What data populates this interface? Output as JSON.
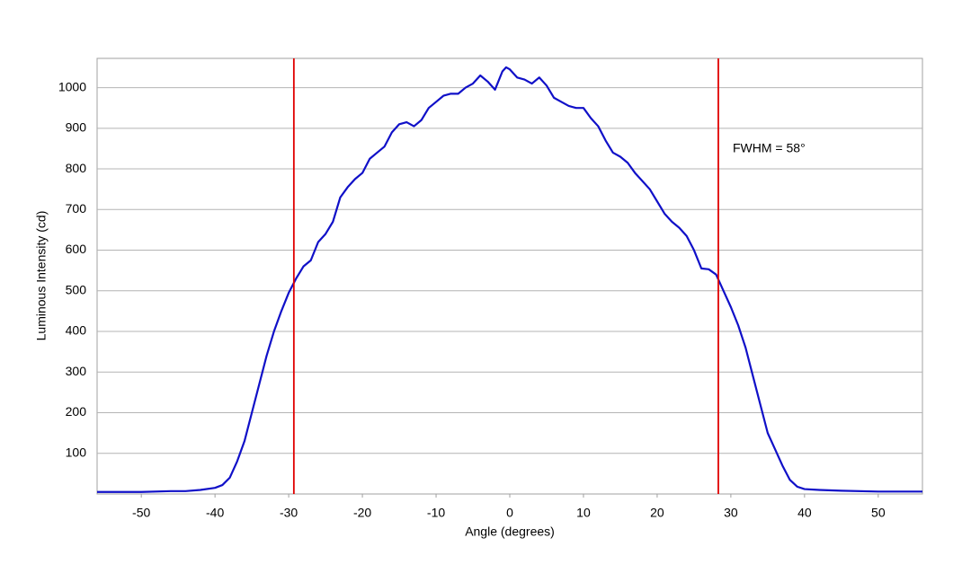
{
  "chart_data": {
    "type": "line",
    "x_label": "Angle (degrees)",
    "y_label": "Luminous Intensity (cd)",
    "annotation": "FWHM = 58°",
    "xlim": [
      -56,
      56
    ],
    "ylim": [
      0,
      1072
    ],
    "xticks": [
      -50,
      -40,
      -30,
      -20,
      -10,
      0,
      10,
      20,
      30,
      40,
      50
    ],
    "yticks": [
      100,
      200,
      300,
      400,
      500,
      600,
      700,
      800,
      900,
      1000
    ],
    "grid": true,
    "vlines": [
      -29.3,
      28.3
    ],
    "vline_color": "#e00000",
    "x": [
      -56,
      -50,
      -46,
      -44,
      -42,
      -40,
      -39,
      -38,
      -37,
      -36,
      -35,
      -34,
      -33,
      -32,
      -31,
      -30,
      -29,
      -28,
      -27,
      -26,
      -25,
      -24,
      -23,
      -22,
      -21,
      -20,
      -19,
      -18,
      -17,
      -16,
      -15,
      -14,
      -13,
      -12,
      -11,
      -10,
      -9,
      -8,
      -7,
      -6,
      -5,
      -4,
      -3,
      -2,
      -1,
      -0.5,
      0,
      1,
      2,
      3,
      4,
      5,
      6,
      7,
      8,
      9,
      10,
      11,
      12,
      13,
      14,
      15,
      16,
      17,
      18,
      19,
      20,
      21,
      22,
      23,
      24,
      25,
      26,
      27,
      28,
      29,
      30,
      31,
      32,
      33,
      34,
      35,
      36,
      37,
      38,
      39,
      40,
      42,
      45,
      50,
      56
    ],
    "series": [
      {
        "color": "#1010c8",
        "values": [
          5,
          5,
          7,
          7,
          10,
          15,
          22,
          40,
          80,
          130,
          200,
          270,
          340,
          400,
          450,
          495,
          530,
          560,
          575,
          620,
          640,
          670,
          730,
          755,
          775,
          790,
          825,
          840,
          855,
          890,
          910,
          915,
          905,
          920,
          950,
          965,
          980,
          985,
          985,
          1000,
          1010,
          1030,
          1015,
          995,
          1040,
          1050,
          1045,
          1025,
          1020,
          1010,
          1025,
          1005,
          975,
          965,
          955,
          950,
          950,
          925,
          905,
          870,
          840,
          830,
          815,
          790,
          770,
          750,
          720,
          690,
          670,
          655,
          635,
          600,
          555,
          553,
          540,
          500,
          460,
          415,
          360,
          290,
          220,
          150,
          110,
          70,
          35,
          18,
          12,
          10,
          8,
          6,
          6
        ]
      }
    ]
  }
}
